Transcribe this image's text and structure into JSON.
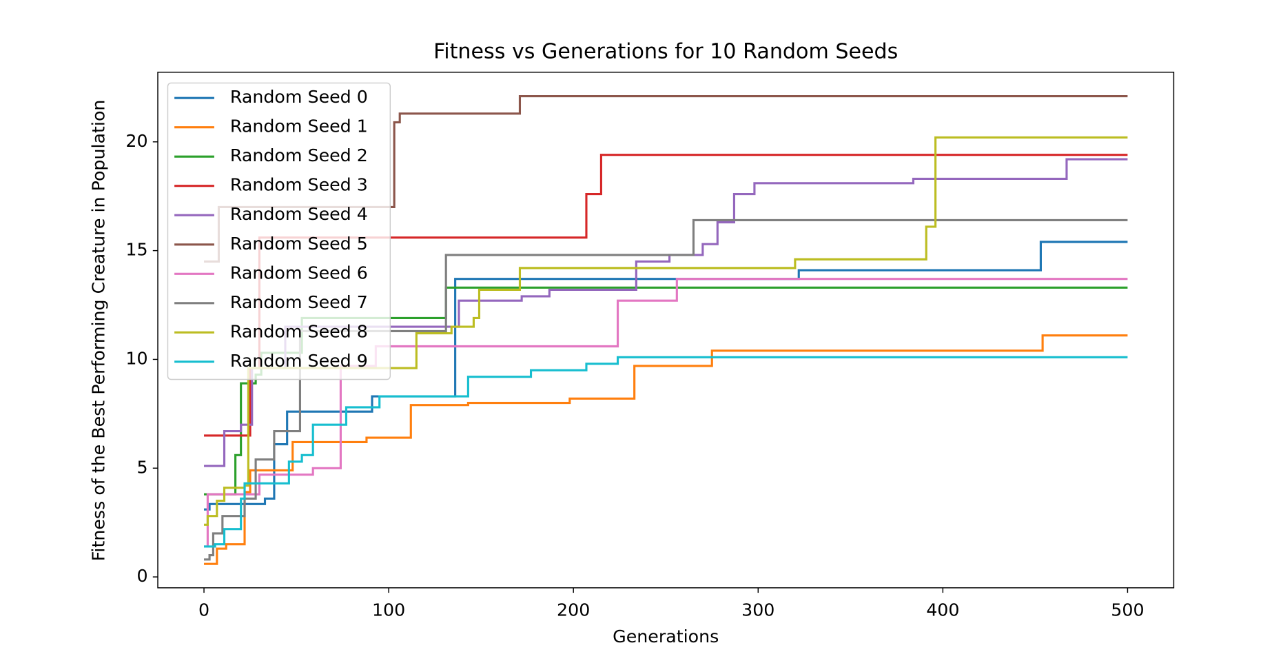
{
  "chart_data": {
    "type": "step",
    "title": "Fitness vs Generations for 10 Random Seeds",
    "xlabel": "Generations",
    "ylabel": "Fitness of the Best Performing Creature in Population",
    "xlim": [
      -25,
      525
    ],
    "ylim": [
      -0.5,
      23.2
    ],
    "xticks": [
      0,
      100,
      200,
      300,
      400,
      500
    ],
    "yticks": [
      0,
      5,
      10,
      15,
      20
    ],
    "legend": "upper left",
    "series": [
      {
        "name": "Random Seed 0",
        "color": "#1f77b4",
        "x": [
          0,
          3,
          33,
          38,
          45,
          91,
          136,
          322,
          453,
          500
        ],
        "values": [
          3.1,
          3.35,
          3.6,
          6.1,
          7.6,
          8.3,
          13.7,
          14.1,
          15.4,
          15.4
        ]
      },
      {
        "name": "Random Seed 1",
        "color": "#ff7f0e",
        "x": [
          0,
          7,
          12,
          22,
          25,
          48,
          88,
          112,
          143,
          198,
          233,
          275,
          454,
          500
        ],
        "values": [
          0.6,
          1.3,
          1.5,
          3.9,
          4.9,
          6.2,
          6.4,
          7.9,
          8.0,
          8.2,
          9.7,
          10.4,
          11.1,
          11.1
        ]
      },
      {
        "name": "Random Seed 2",
        "color": "#2ca02c",
        "x": [
          0,
          17,
          20,
          28,
          31,
          53,
          131,
          500
        ],
        "values": [
          3.8,
          5.6,
          8.9,
          9.3,
          10.3,
          11.9,
          13.3,
          13.3
        ]
      },
      {
        "name": "Random Seed 3",
        "color": "#d62728",
        "x": [
          0,
          25,
          30,
          207,
          215,
          500
        ],
        "values": [
          6.5,
          9.6,
          15.6,
          17.6,
          19.4,
          19.4
        ]
      },
      {
        "name": "Random Seed 4",
        "color": "#9467bd",
        "x": [
          0,
          11,
          20,
          26,
          44,
          138,
          172,
          187,
          234,
          252,
          270,
          278,
          287,
          298,
          384,
          467,
          500
        ],
        "values": [
          5.1,
          6.7,
          7.0,
          9.6,
          11.5,
          12.7,
          12.9,
          13.2,
          14.5,
          14.8,
          15.3,
          16.3,
          17.6,
          18.1,
          18.3,
          19.2,
          19.2
        ]
      },
      {
        "name": "Random Seed 5",
        "color": "#8c564b",
        "x": [
          0,
          8,
          103,
          106,
          171,
          500
        ],
        "values": [
          14.5,
          17.0,
          20.9,
          21.3,
          22.1,
          22.1
        ]
      },
      {
        "name": "Random Seed 6",
        "color": "#e377c2",
        "x": [
          0,
          2,
          30,
          59,
          74,
          93,
          224,
          256,
          500
        ],
        "values": [
          1.4,
          3.8,
          4.7,
          5.0,
          9.7,
          10.6,
          12.7,
          13.7,
          13.7
        ]
      },
      {
        "name": "Random Seed 7",
        "color": "#7f7f7f",
        "x": [
          0,
          3,
          5,
          10,
          22,
          28,
          38,
          52,
          131,
          265,
          500
        ],
        "values": [
          0.8,
          1.0,
          2.0,
          2.8,
          3.6,
          5.4,
          6.7,
          11.3,
          14.8,
          16.4,
          16.4
        ]
      },
      {
        "name": "Random Seed 8",
        "color": "#bcbd22",
        "x": [
          0,
          2,
          7,
          11,
          22,
          24,
          115,
          134,
          146,
          149,
          171,
          320,
          391,
          396,
          500
        ],
        "values": [
          2.4,
          2.8,
          3.5,
          4.1,
          4.2,
          9.6,
          11.2,
          11.5,
          11.9,
          13.2,
          14.2,
          14.6,
          16.1,
          20.2,
          20.2
        ]
      },
      {
        "name": "Random Seed 9",
        "color": "#17becf",
        "x": [
          0,
          6,
          11,
          20,
          22,
          46,
          53,
          59,
          77,
          95,
          143,
          177,
          207,
          224,
          500
        ],
        "values": [
          1.4,
          1.5,
          2.2,
          3.6,
          4.3,
          5.3,
          5.6,
          7.0,
          7.8,
          8.3,
          9.2,
          9.5,
          9.8,
          10.1,
          10.1
        ]
      }
    ]
  }
}
